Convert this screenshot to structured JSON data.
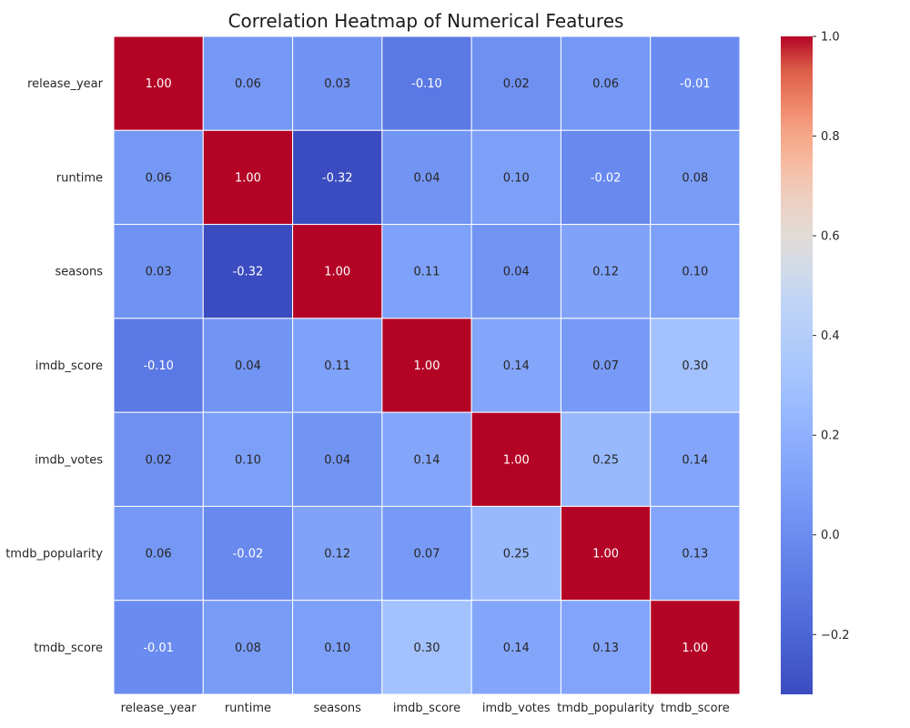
{
  "chart_data": {
    "type": "heatmap",
    "title": "Correlation Heatmap of Numerical Features",
    "x_labels": [
      "release_year",
      "runtime",
      "seasons",
      "imdb_score",
      "imdb_votes",
      "tmdb_popularity",
      "tmdb_score"
    ],
    "y_labels": [
      "release_year",
      "runtime",
      "seasons",
      "imdb_score",
      "imdb_votes",
      "tmdb_popularity",
      "tmdb_score"
    ],
    "values": [
      [
        1.0,
        0.06,
        0.03,
        -0.1,
        0.02,
        0.06,
        -0.01
      ],
      [
        0.06,
        1.0,
        -0.32,
        0.04,
        0.1,
        -0.02,
        0.08
      ],
      [
        0.03,
        -0.32,
        1.0,
        0.11,
        0.04,
        0.12,
        0.1
      ],
      [
        -0.1,
        0.04,
        0.11,
        1.0,
        0.14,
        0.07,
        0.3
      ],
      [
        0.02,
        0.1,
        0.04,
        0.14,
        1.0,
        0.25,
        0.14
      ],
      [
        0.06,
        -0.02,
        0.12,
        0.07,
        0.25,
        1.0,
        0.13
      ],
      [
        -0.01,
        0.08,
        0.1,
        0.3,
        0.14,
        0.13,
        1.0
      ]
    ],
    "colormap": "coolwarm",
    "color_range": [
      -0.32,
      1.0
    ],
    "colorbar_ticks": [
      1.0,
      0.8,
      0.6,
      0.4,
      0.2,
      0.0,
      -0.2
    ],
    "colorbar_tick_labels": [
      "1.0",
      "0.8",
      "0.6",
      "0.4",
      "0.2",
      "0.0",
      "−0.2"
    ],
    "annotate": true,
    "value_format": "2f",
    "colors": {
      "cell_border": "#ffffff",
      "dark_text": "#262626",
      "light_text": "#ffffff"
    }
  }
}
